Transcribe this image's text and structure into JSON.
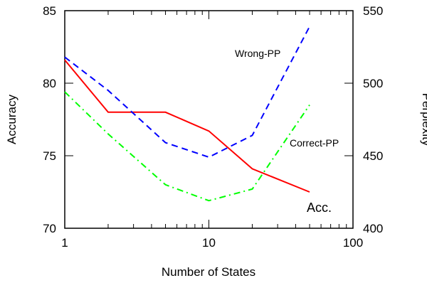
{
  "chart_data": {
    "type": "line",
    "xlabel": "Number of States",
    "ylabel_left": "Accuracy",
    "ylabel_right": "Perplexity",
    "x_scale": "log",
    "xlim": [
      1,
      100
    ],
    "ylim_left": [
      70,
      85
    ],
    "ylim_right": [
      400,
      550
    ],
    "x_ticks": [
      "1",
      "10",
      "100"
    ],
    "y_ticks_left": [
      "70",
      "75",
      "80",
      "85"
    ],
    "y_ticks_right": [
      "400",
      "450",
      "500",
      "550"
    ],
    "grid": false,
    "series": [
      {
        "name": "Acc.",
        "axis": "left",
        "color": "#ff0000",
        "dash": "solid",
        "x": [
          1,
          2,
          5,
          10,
          20,
          50
        ],
        "y": [
          81.6,
          78.0,
          78.0,
          76.7,
          74.1,
          72.5
        ]
      },
      {
        "name": "Wrong-PP",
        "axis": "right",
        "color": "#0000ff",
        "dash": "dashed",
        "x": [
          1,
          2,
          5,
          10,
          20,
          50
        ],
        "y": [
          518,
          495,
          459,
          449,
          464,
          539
        ]
      },
      {
        "name": "Correct-PP",
        "axis": "right",
        "color": "#00ff00",
        "dash": "dash-dot",
        "x": [
          1,
          2,
          5,
          10,
          20,
          50
        ],
        "y": [
          494,
          465,
          430,
          419,
          427,
          485
        ]
      }
    ]
  }
}
